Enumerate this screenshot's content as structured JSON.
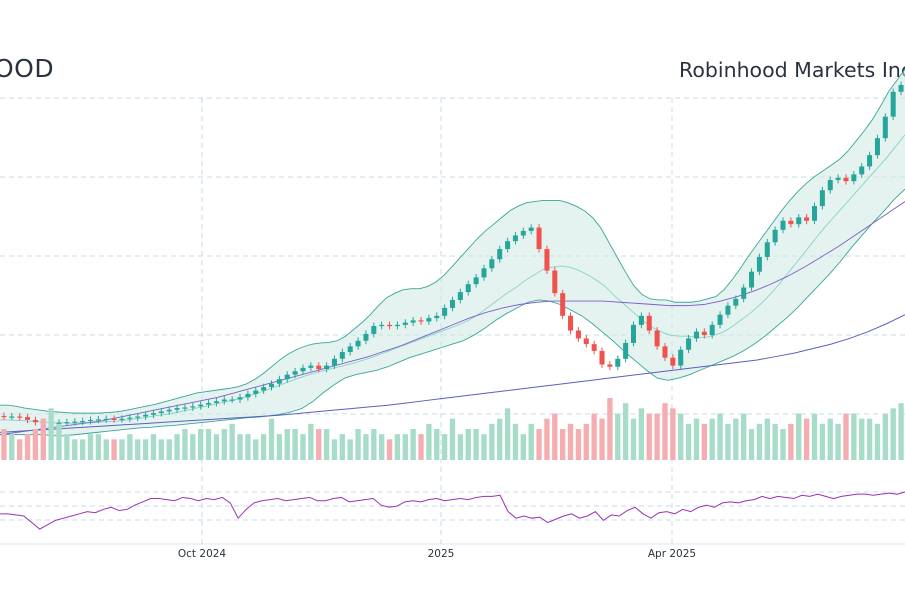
{
  "header": {
    "ticker": "OOD",
    "company": "Robinhood Markets Inc"
  },
  "colors": {
    "up": "#26a69a",
    "down": "#ef5350",
    "band_fill": "#cfe9e4",
    "band_line": "#3aa597",
    "ma_mid": "#8ad1c6",
    "ma_medium": "#7b5fc7",
    "ma_long": "#5a5fc0",
    "rsi": "#9b30b5",
    "grid": "#c9d8e8"
  },
  "chart_data": {
    "type": "candlestick",
    "x_ticks": [
      "Oct 2024",
      "2025",
      "Apr 2025"
    ],
    "price": {
      "ylim": [
        0,
        5
      ],
      "open": [
        0.33,
        0.32,
        0.32,
        0.31,
        0.26,
        0.22,
        0.19,
        0.2,
        0.21,
        0.22,
        0.23,
        0.24,
        0.26,
        0.27,
        0.28,
        0.27,
        0.28,
        0.3,
        0.32,
        0.35,
        0.38,
        0.41,
        0.44,
        0.47,
        0.48,
        0.5,
        0.53,
        0.56,
        0.59,
        0.62,
        0.62,
        0.66,
        0.72,
        0.78,
        0.84,
        0.9,
        0.98,
        1.06,
        1.12,
        1.18,
        1.22,
        1.16,
        1.22,
        1.34,
        1.46,
        1.56,
        1.66,
        1.78,
        1.92,
        1.94,
        1.92,
        1.94,
        1.98,
        2.02,
        2.0,
        2.06,
        2.1,
        2.24,
        2.38,
        2.52,
        2.66,
        2.78,
        2.94,
        3.1,
        3.28,
        3.42,
        3.52,
        3.6,
        3.66,
        3.28,
        2.9,
        2.5,
        2.1,
        1.84,
        1.7,
        1.6,
        1.48,
        1.24,
        1.2,
        1.34,
        1.62,
        1.94,
        2.1,
        1.84,
        1.56,
        1.36,
        1.22,
        1.5,
        1.7,
        1.82,
        1.76,
        1.94,
        2.12,
        2.28,
        2.4,
        2.6,
        2.88,
        3.14,
        3.4,
        3.62,
        3.78,
        3.72,
        3.84,
        3.78,
        4.04,
        4.32,
        4.5,
        4.54,
        4.48,
        4.6,
        4.74,
        4.94,
        5.24,
        5.62,
        6.06
      ],
      "close": [
        0.32,
        0.32,
        0.31,
        0.26,
        0.22,
        0.19,
        0.2,
        0.21,
        0.22,
        0.23,
        0.24,
        0.26,
        0.27,
        0.28,
        0.27,
        0.28,
        0.3,
        0.32,
        0.35,
        0.38,
        0.41,
        0.44,
        0.47,
        0.48,
        0.5,
        0.53,
        0.56,
        0.59,
        0.62,
        0.62,
        0.66,
        0.72,
        0.78,
        0.84,
        0.9,
        0.98,
        1.06,
        1.12,
        1.18,
        1.22,
        1.16,
        1.22,
        1.34,
        1.46,
        1.56,
        1.66,
        1.78,
        1.92,
        1.94,
        1.92,
        1.94,
        1.98,
        2.02,
        2.0,
        2.06,
        2.1,
        2.24,
        2.38,
        2.52,
        2.66,
        2.78,
        2.94,
        3.1,
        3.28,
        3.42,
        3.52,
        3.6,
        3.66,
        3.28,
        2.9,
        2.5,
        2.1,
        1.84,
        1.7,
        1.6,
        1.48,
        1.24,
        1.2,
        1.34,
        1.62,
        1.94,
        2.1,
        1.84,
        1.56,
        1.36,
        1.22,
        1.5,
        1.7,
        1.82,
        1.76,
        1.94,
        2.12,
        2.28,
        2.4,
        2.6,
        2.88,
        3.14,
        3.4,
        3.62,
        3.78,
        3.72,
        3.84,
        3.78,
        4.04,
        4.32,
        4.5,
        4.54,
        4.48,
        4.6,
        4.74,
        4.94,
        5.24,
        5.62,
        6.06,
        6.18
      ],
      "bb_upper": [
        0.52,
        0.52,
        0.5,
        0.47,
        0.45,
        0.43,
        0.41,
        0.4,
        0.39,
        0.38,
        0.38,
        0.38,
        0.38,
        0.39,
        0.4,
        0.42,
        0.45,
        0.48,
        0.51,
        0.54,
        0.58,
        0.62,
        0.66,
        0.7,
        0.74,
        0.76,
        0.78,
        0.8,
        0.82,
        0.85,
        0.9,
        0.98,
        1.08,
        1.2,
        1.32,
        1.42,
        1.5,
        1.56,
        1.6,
        1.62,
        1.63,
        1.66,
        1.74,
        1.86,
        1.98,
        2.12,
        2.28,
        2.42,
        2.5,
        2.56,
        2.58,
        2.58,
        2.62,
        2.7,
        2.82,
        2.98,
        3.14,
        3.3,
        3.46,
        3.6,
        3.72,
        3.84,
        3.96,
        4.04,
        4.1,
        4.12,
        4.14,
        4.14,
        4.14,
        4.1,
        4.04,
        3.96,
        3.84,
        3.66,
        3.4,
        3.14,
        2.88,
        2.64,
        2.48,
        2.4,
        2.38,
        2.38,
        2.34,
        2.34,
        2.34,
        2.36,
        2.4,
        2.44,
        2.56,
        2.74,
        2.94,
        3.16,
        3.36,
        3.56,
        3.76,
        3.96,
        4.14,
        4.3,
        4.44,
        4.56,
        4.66,
        4.76,
        4.86,
        5.0,
        5.18,
        5.36,
        5.56,
        5.8,
        6.06,
        6.26,
        6.46
      ],
      "bb_lower": [
        0.0,
        0.0,
        0.0,
        0.0,
        0.0,
        -0.02,
        -0.02,
        0.0,
        0.02,
        0.04,
        0.06,
        0.08,
        0.1,
        0.12,
        0.13,
        0.15,
        0.16,
        0.18,
        0.2,
        0.22,
        0.24,
        0.26,
        0.28,
        0.3,
        0.31,
        0.33,
        0.36,
        0.4,
        0.46,
        0.58,
        0.74,
        0.88,
        1.0,
        1.06,
        1.1,
        1.14,
        1.2,
        1.28,
        1.36,
        1.42,
        1.48,
        1.54,
        1.6,
        1.66,
        1.76,
        1.88,
        2.02,
        2.14,
        2.24,
        2.34,
        2.38,
        2.36,
        2.3,
        2.2,
        2.1,
        1.96,
        1.8,
        1.64,
        1.46,
        1.3,
        1.14,
        1.0,
        0.96,
        1.0,
        1.06,
        1.14,
        1.22,
        1.3,
        1.38,
        1.48,
        1.6,
        1.74,
        1.9,
        2.06,
        2.24,
        2.44,
        2.64,
        2.84,
        3.06,
        3.3,
        3.52,
        3.74,
        3.94,
        4.16,
        4.34
      ],
      "ma_mid": [
        0.26,
        0.26,
        0.25,
        0.24,
        0.23,
        0.22,
        0.21,
        0.21,
        0.2,
        0.21,
        0.21,
        0.22,
        0.23,
        0.24,
        0.26,
        0.28,
        0.3,
        0.33,
        0.35,
        0.38,
        0.41,
        0.44,
        0.48,
        0.51,
        0.55,
        0.58,
        0.62,
        0.66,
        0.71,
        0.76,
        0.82,
        0.88,
        0.94,
        1.0,
        1.05,
        1.1,
        1.14,
        1.18,
        1.22,
        1.26,
        1.31,
        1.36,
        1.42,
        1.48,
        1.54,
        1.6,
        1.66,
        1.72,
        1.78,
        1.84,
        1.9,
        1.96,
        2.04,
        2.14,
        2.26,
        2.38,
        2.5,
        2.6,
        2.72,
        2.82,
        2.92,
        2.96,
        2.98,
        2.96,
        2.9,
        2.82,
        2.72,
        2.6,
        2.44,
        2.3,
        2.16,
        2.02,
        1.9,
        1.82,
        1.76,
        1.74,
        1.74,
        1.72,
        1.72,
        1.76,
        1.82,
        1.92,
        2.04,
        2.16,
        2.3,
        2.46,
        2.64,
        2.84,
        3.04,
        3.24,
        3.44,
        3.64,
        3.82,
        4.0,
        4.18,
        4.36,
        4.54,
        4.72,
        4.9,
        5.1,
        5.3
      ],
      "ma_medium": [
        0.0,
        0.04,
        0.08,
        0.12,
        0.16,
        0.2,
        0.24,
        0.3,
        0.36,
        0.42,
        0.48,
        0.54,
        0.6,
        0.66,
        0.74,
        0.82,
        0.9,
        0.98,
        1.06,
        1.14,
        1.22,
        1.3,
        1.38,
        1.48,
        1.58,
        1.7,
        1.82,
        1.94,
        2.06,
        2.16,
        2.24,
        2.3,
        2.34,
        2.36,
        2.36,
        2.36,
        2.36,
        2.34,
        2.32,
        2.3,
        2.28,
        2.28,
        2.3,
        2.36,
        2.44,
        2.54,
        2.66,
        2.8,
        2.96,
        3.14,
        3.32,
        3.52,
        3.72,
        3.92,
        4.12
      ],
      "ma_long": [
        0.04,
        0.06,
        0.08,
        0.1,
        0.12,
        0.14,
        0.16,
        0.18,
        0.2,
        0.22,
        0.24,
        0.26,
        0.28,
        0.3,
        0.32,
        0.34,
        0.37,
        0.4,
        0.43,
        0.46,
        0.49,
        0.52,
        0.56,
        0.6,
        0.64,
        0.68,
        0.72,
        0.76,
        0.8,
        0.84,
        0.88,
        0.92,
        0.96,
        1.0,
        1.04,
        1.08,
        1.12,
        1.16,
        1.2,
        1.24,
        1.28,
        1.32,
        1.38,
        1.44,
        1.52,
        1.6,
        1.7,
        1.82,
        1.96,
        2.12
      ]
    },
    "volume": [
      0.6,
      0.5,
      0.4,
      0.5,
      0.6,
      0.8,
      1.0,
      0.7,
      0.5,
      0.4,
      0.4,
      0.5,
      0.5,
      0.4,
      0.4,
      0.4,
      0.5,
      0.4,
      0.4,
      0.5,
      0.4,
      0.4,
      0.5,
      0.6,
      0.5,
      0.6,
      0.6,
      0.5,
      0.6,
      0.7,
      0.5,
      0.5,
      0.4,
      0.5,
      0.8,
      0.5,
      0.6,
      0.6,
      0.5,
      0.7,
      0.6,
      0.6,
      0.4,
      0.5,
      0.4,
      0.6,
      0.5,
      0.6,
      0.5,
      0.4,
      0.5,
      0.5,
      0.6,
      0.5,
      0.7,
      0.6,
      0.5,
      0.8,
      0.5,
      0.6,
      0.6,
      0.5,
      0.7,
      0.8,
      1.0,
      0.7,
      0.5,
      0.7,
      0.6,
      0.8,
      0.9,
      0.6,
      0.7,
      0.6,
      0.7,
      0.9,
      0.8,
      1.2,
      0.9,
      1.1,
      0.8,
      1.0,
      0.9,
      0.9,
      1.1,
      1.0,
      0.9,
      0.7,
      0.8,
      0.7,
      0.8,
      0.9,
      0.7,
      0.8,
      0.9,
      0.6,
      0.7,
      0.8,
      0.7,
      0.6,
      0.7,
      0.9,
      0.8,
      0.9,
      0.7,
      0.8,
      0.7,
      0.9,
      0.9,
      0.8,
      0.8,
      0.7,
      0.9,
      1.0,
      1.1
    ],
    "rsi": [
      44,
      44,
      43,
      42,
      36,
      30,
      34,
      38,
      40,
      42,
      44,
      46,
      45,
      48,
      50,
      47,
      48,
      52,
      55,
      58,
      58,
      57,
      56,
      59,
      58,
      56,
      58,
      57,
      59,
      54,
      40,
      48,
      54,
      56,
      57,
      58,
      56,
      57,
      58,
      59,
      56,
      56,
      58,
      59,
      55,
      56,
      57,
      58,
      52,
      50,
      51,
      55,
      56,
      55,
      57,
      58,
      56,
      57,
      58,
      57,
      59,
      60,
      60,
      61,
      46,
      40,
      42,
      40,
      41,
      36,
      39,
      42,
      44,
      40,
      42,
      46,
      38,
      43,
      42,
      47,
      50,
      44,
      40,
      45,
      46,
      44,
      48,
      46,
      50,
      52,
      50,
      54,
      55,
      54,
      56,
      57,
      60,
      58,
      60,
      59,
      58,
      61,
      60,
      62,
      60,
      58,
      60,
      61,
      62,
      62,
      61,
      62,
      63,
      62,
      64
    ]
  }
}
